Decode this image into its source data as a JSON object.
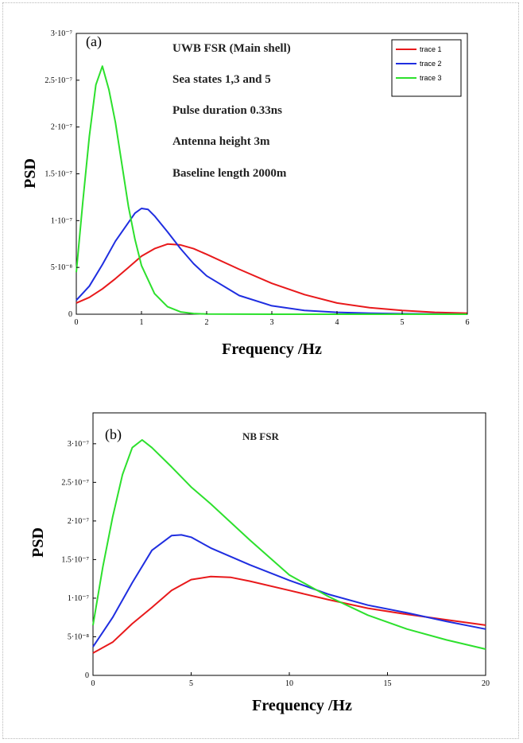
{
  "chart_data": [
    {
      "panel": "(a)",
      "type": "line",
      "annotations": [
        "UWB FSR (Main shell)",
        "Sea states 1,3 and 5",
        "Pulse duration 0.33ns",
        "Antenna height 3m",
        "Baseline length 2000m"
      ],
      "xlabel": "Frequency /Hz",
      "ylabel": "PSD",
      "xlim": [
        0,
        6
      ],
      "ylim": [
        0,
        3e-07
      ],
      "x_ticks": [
        "0",
        "1",
        "2",
        "3",
        "4",
        "5",
        "6"
      ],
      "y_ticks": [
        {
          "value": 0,
          "label": "0"
        },
        {
          "value": 5e-08,
          "label": "5·10⁻⁸"
        },
        {
          "value": 1e-07,
          "label": "1·10⁻⁷"
        },
        {
          "value": 1.5e-07,
          "label": "1.5·10⁻⁷"
        },
        {
          "value": 2e-07,
          "label": "2·10⁻⁷"
        },
        {
          "value": 2.5e-07,
          "label": "2.5·10⁻⁷"
        },
        {
          "value": 3e-07,
          "label": "3·10⁻⁷"
        }
      ],
      "legend": {
        "position": "top-right",
        "boxed": true
      },
      "grid": false,
      "series": [
        {
          "name": "trace 1",
          "color": "#e8191b",
          "x": [
            0,
            0.2,
            0.4,
            0.6,
            0.8,
            1.0,
            1.2,
            1.4,
            1.6,
            1.8,
            2.0,
            2.5,
            3.0,
            3.5,
            4.0,
            4.5,
            5.0,
            5.5,
            6.0
          ],
          "y": [
            1.2e-08,
            1.8e-08,
            2.7e-08,
            3.8e-08,
            5e-08,
            6.2e-08,
            7e-08,
            7.5e-08,
            7.4e-08,
            7e-08,
            6.4e-08,
            4.8e-08,
            3.3e-08,
            2.1e-08,
            1.2e-08,
            7e-09,
            4e-09,
            2e-09,
            1e-09
          ]
        },
        {
          "name": "trace 2",
          "color": "#1f2ee0",
          "x": [
            0,
            0.2,
            0.4,
            0.6,
            0.8,
            0.9,
            1.0,
            1.1,
            1.2,
            1.4,
            1.6,
            1.8,
            2.0,
            2.5,
            3.0,
            3.5,
            4.0,
            4.5,
            5.0,
            6.0
          ],
          "y": [
            1.5e-08,
            3e-08,
            5.3e-08,
            7.8e-08,
            9.8e-08,
            1.08e-07,
            1.13e-07,
            1.12e-07,
            1.05e-07,
            8.8e-08,
            7e-08,
            5.4e-08,
            4.1e-08,
            2e-08,
            9e-09,
            4e-09,
            2e-09,
            1e-09,
            5e-10,
            0
          ]
        },
        {
          "name": "trace 3",
          "color": "#2de02d",
          "x": [
            0,
            0.1,
            0.2,
            0.3,
            0.4,
            0.5,
            0.6,
            0.7,
            0.8,
            0.9,
            1.0,
            1.2,
            1.4,
            1.6,
            1.8,
            2.0,
            3.0,
            4.0,
            6.0
          ],
          "y": [
            4.5e-08,
            1.2e-07,
            1.9e-07,
            2.45e-07,
            2.65e-07,
            2.4e-07,
            2.05e-07,
            1.6e-07,
            1.15e-07,
            8e-08,
            5.2e-08,
            2.2e-08,
            8e-09,
            2.5e-09,
            8e-10,
            2e-10,
            0,
            0,
            0
          ]
        }
      ]
    },
    {
      "panel": "(b)",
      "type": "line",
      "title": "NB FSR",
      "xlabel": "Frequency /Hz",
      "ylabel": "PSD",
      "xlim": [
        0,
        20
      ],
      "ylim": [
        0,
        3.4e-07
      ],
      "x_ticks": [
        "0",
        "5",
        "10",
        "15",
        "20"
      ],
      "y_ticks": [
        {
          "value": 0,
          "label": "0"
        },
        {
          "value": 5e-08,
          "label": "5·10⁻⁸"
        },
        {
          "value": 1e-07,
          "label": "1·10⁻⁷"
        },
        {
          "value": 1.5e-07,
          "label": "1.5·10⁻⁷"
        },
        {
          "value": 2e-07,
          "label": "2·10⁻⁷"
        },
        {
          "value": 2.5e-07,
          "label": "2.5·10⁻⁷"
        },
        {
          "value": 3e-07,
          "label": "3·10⁻⁷"
        }
      ],
      "grid": false,
      "series": [
        {
          "color": "#e8191b",
          "x": [
            0,
            1,
            2,
            3,
            4,
            5,
            6,
            7,
            8,
            10,
            12,
            14,
            16,
            18,
            20
          ],
          "y": [
            2.9e-08,
            4.3e-08,
            6.7e-08,
            8.8e-08,
            1.1e-07,
            1.24e-07,
            1.28e-07,
            1.27e-07,
            1.22e-07,
            1.1e-07,
            9.8e-08,
            8.7e-08,
            7.9e-08,
            7.2e-08,
            6.5e-08
          ]
        },
        {
          "color": "#1f2ee0",
          "x": [
            0,
            1,
            2,
            3,
            4,
            4.5,
            5,
            6,
            8,
            10,
            12,
            14,
            16,
            18,
            20
          ],
          "y": [
            3.7e-08,
            7.5e-08,
            1.2e-07,
            1.62e-07,
            1.81e-07,
            1.82e-07,
            1.79e-07,
            1.65e-07,
            1.43e-07,
            1.23e-07,
            1.05e-07,
            9.1e-08,
            8.1e-08,
            7e-08,
            6e-08
          ]
        },
        {
          "color": "#2de02d",
          "x": [
            0,
            0.5,
            1,
            1.5,
            2,
            2.5,
            3,
            4,
            5,
            6,
            8,
            10,
            12,
            14,
            16,
            18,
            20
          ],
          "y": [
            6.5e-08,
            1.4e-07,
            2.05e-07,
            2.6e-07,
            2.95e-07,
            3.05e-07,
            2.95e-07,
            2.7e-07,
            2.44e-07,
            2.22e-07,
            1.75e-07,
            1.3e-07,
            1.02e-07,
            7.8e-08,
            6e-08,
            4.6e-08,
            3.4e-08
          ]
        }
      ]
    }
  ]
}
